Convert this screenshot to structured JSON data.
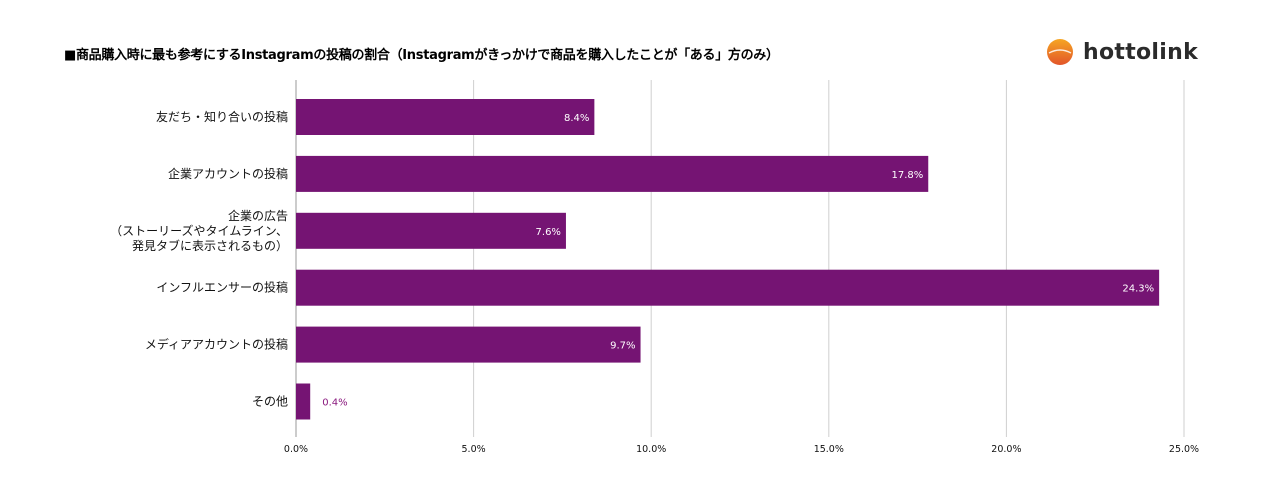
{
  "title": "■商品購入時に最も参考にするInstagramの投稿の割合（Instagramがきっかけで商品を購入したことが「ある」方のみ）",
  "logo": {
    "name": "hottolink",
    "icon": "orange-circle-logo-icon"
  },
  "colors": {
    "bar": "#751473",
    "grid": "#cfcfcf",
    "value_outside": "#8a1a7f",
    "logo_top": "#f39a1e",
    "logo_bottom": "#e2552a"
  },
  "chart_data": {
    "type": "bar",
    "orientation": "horizontal",
    "title": "■商品購入時に最も参考にするInstagramの投稿の割合（Instagramがきっかけで商品を購入したことが「ある」方のみ）",
    "categories": [
      [
        "友だち・知り合いの投稿"
      ],
      [
        "企業アカウントの投稿"
      ],
      [
        "企業の広告",
        "（ストーリーズやタイムライン、",
        "発見タブに表示されるもの）"
      ],
      [
        "インフルエンサーの投稿"
      ],
      [
        "メディアアカウントの投稿"
      ],
      [
        "その他"
      ]
    ],
    "values": [
      8.4,
      17.8,
      7.6,
      24.3,
      9.7,
      0.4
    ],
    "value_labels": [
      "8.4%",
      "17.8%",
      "7.6%",
      "24.3%",
      "9.7%",
      "0.4%"
    ],
    "xlim": [
      0,
      25
    ],
    "xticks": [
      0,
      5,
      10,
      15,
      20,
      25
    ],
    "xtick_labels": [
      "0.0%",
      "5.0%",
      "10.0%",
      "15.0%",
      "20.0%",
      "25.0%"
    ],
    "grid": true,
    "legend": "none",
    "xlabel": "",
    "ylabel": ""
  }
}
